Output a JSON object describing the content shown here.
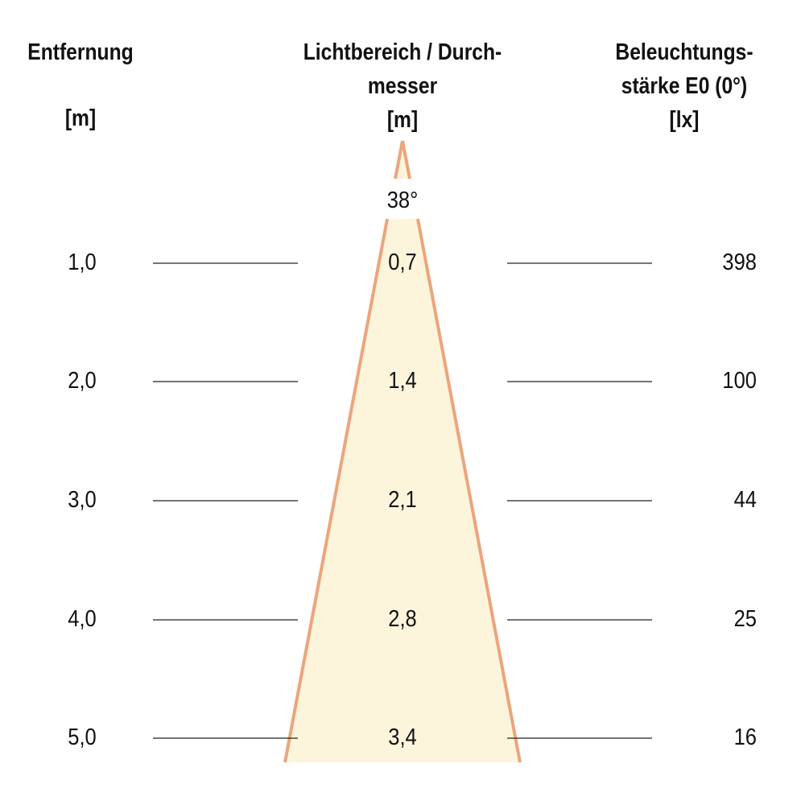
{
  "headers": {
    "distance": {
      "line1": "Entfernung",
      "unit": "[m]"
    },
    "diameter": {
      "line1": "Lichtbereich / Durch-",
      "line2": "messer",
      "unit": "[m]"
    },
    "illuminance": {
      "line1": "Beleuchtungs-",
      "line2": "stärke E0 (0°)",
      "unit": "[lx]"
    }
  },
  "beam_angle": "38°",
  "rows": [
    {
      "distance": "1,0",
      "diameter": "0,7",
      "illuminance": "398"
    },
    {
      "distance": "2,0",
      "diameter": "1,4",
      "illuminance": "100"
    },
    {
      "distance": "3,0",
      "diameter": "2,1",
      "illuminance": "44"
    },
    {
      "distance": "4,0",
      "diameter": "2,8",
      "illuminance": "25"
    },
    {
      "distance": "5,0",
      "diameter": "3,4",
      "illuminance": "16"
    }
  ],
  "colors": {
    "cone_fill": "#fcf5dc",
    "cone_edge": "#eca57c",
    "rule": "#222222"
  }
}
